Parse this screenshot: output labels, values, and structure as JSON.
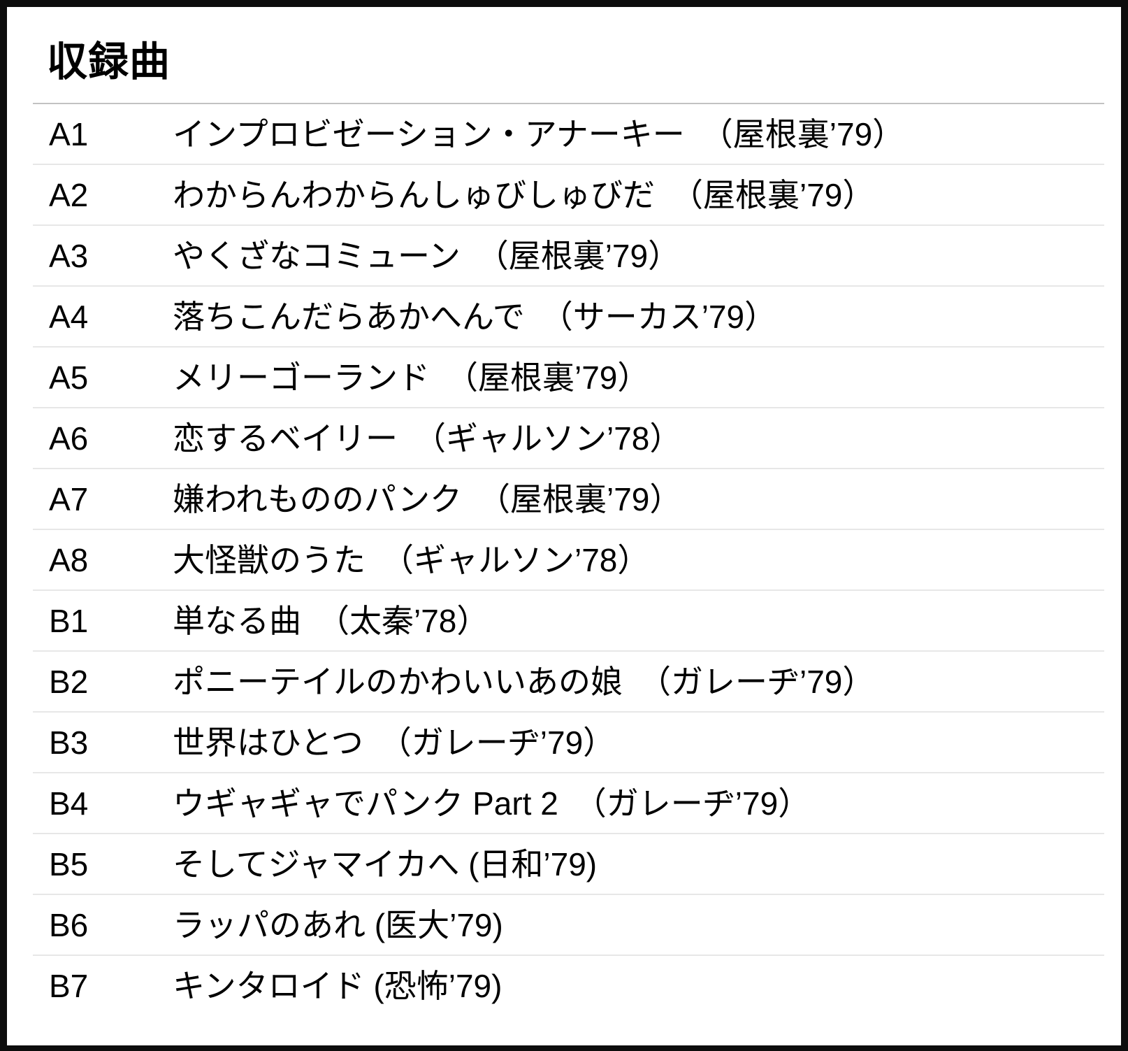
{
  "tracklist": {
    "heading": "収録曲",
    "tracks": [
      {
        "no": "A1",
        "title": "インプロビゼーション・アナーキー　（屋根裏’79）"
      },
      {
        "no": "A2",
        "title": "わからんわからんしゅびしゅびだ　（屋根裏’79）"
      },
      {
        "no": "A3",
        "title": "やくざなコミューン　（屋根裏’79）"
      },
      {
        "no": "A4",
        "title": "落ちこんだらあかへんで　（サーカス’79）"
      },
      {
        "no": "A5",
        "title": "メリーゴーランド　（屋根裏’79）"
      },
      {
        "no": "A6",
        "title": "恋するベイリー　（ギャルソン’78）"
      },
      {
        "no": "A7",
        "title": "嫌われもののパンク　（屋根裏’79）"
      },
      {
        "no": "A8",
        "title": "大怪獣のうた　（ギャルソン’78）"
      },
      {
        "no": "B1",
        "title": "単なる曲　（太秦’78）"
      },
      {
        "no": "B2",
        "title": "ポニーテイルのかわいいあの娘　（ガレーヂ’79）"
      },
      {
        "no": "B3",
        "title": "世界はひとつ　（ガレーヂ’79）"
      },
      {
        "no": "B4",
        "title": "ウギャギャでパンク Part 2　（ガレーヂ’79）"
      },
      {
        "no": "B5",
        "title": "そしてジャマイカへ (日和’79)"
      },
      {
        "no": "B6",
        "title": "ラッパのあれ (医大’79)"
      },
      {
        "no": "B7",
        "title": "キンタロイド (恐怖’79)"
      }
    ]
  }
}
